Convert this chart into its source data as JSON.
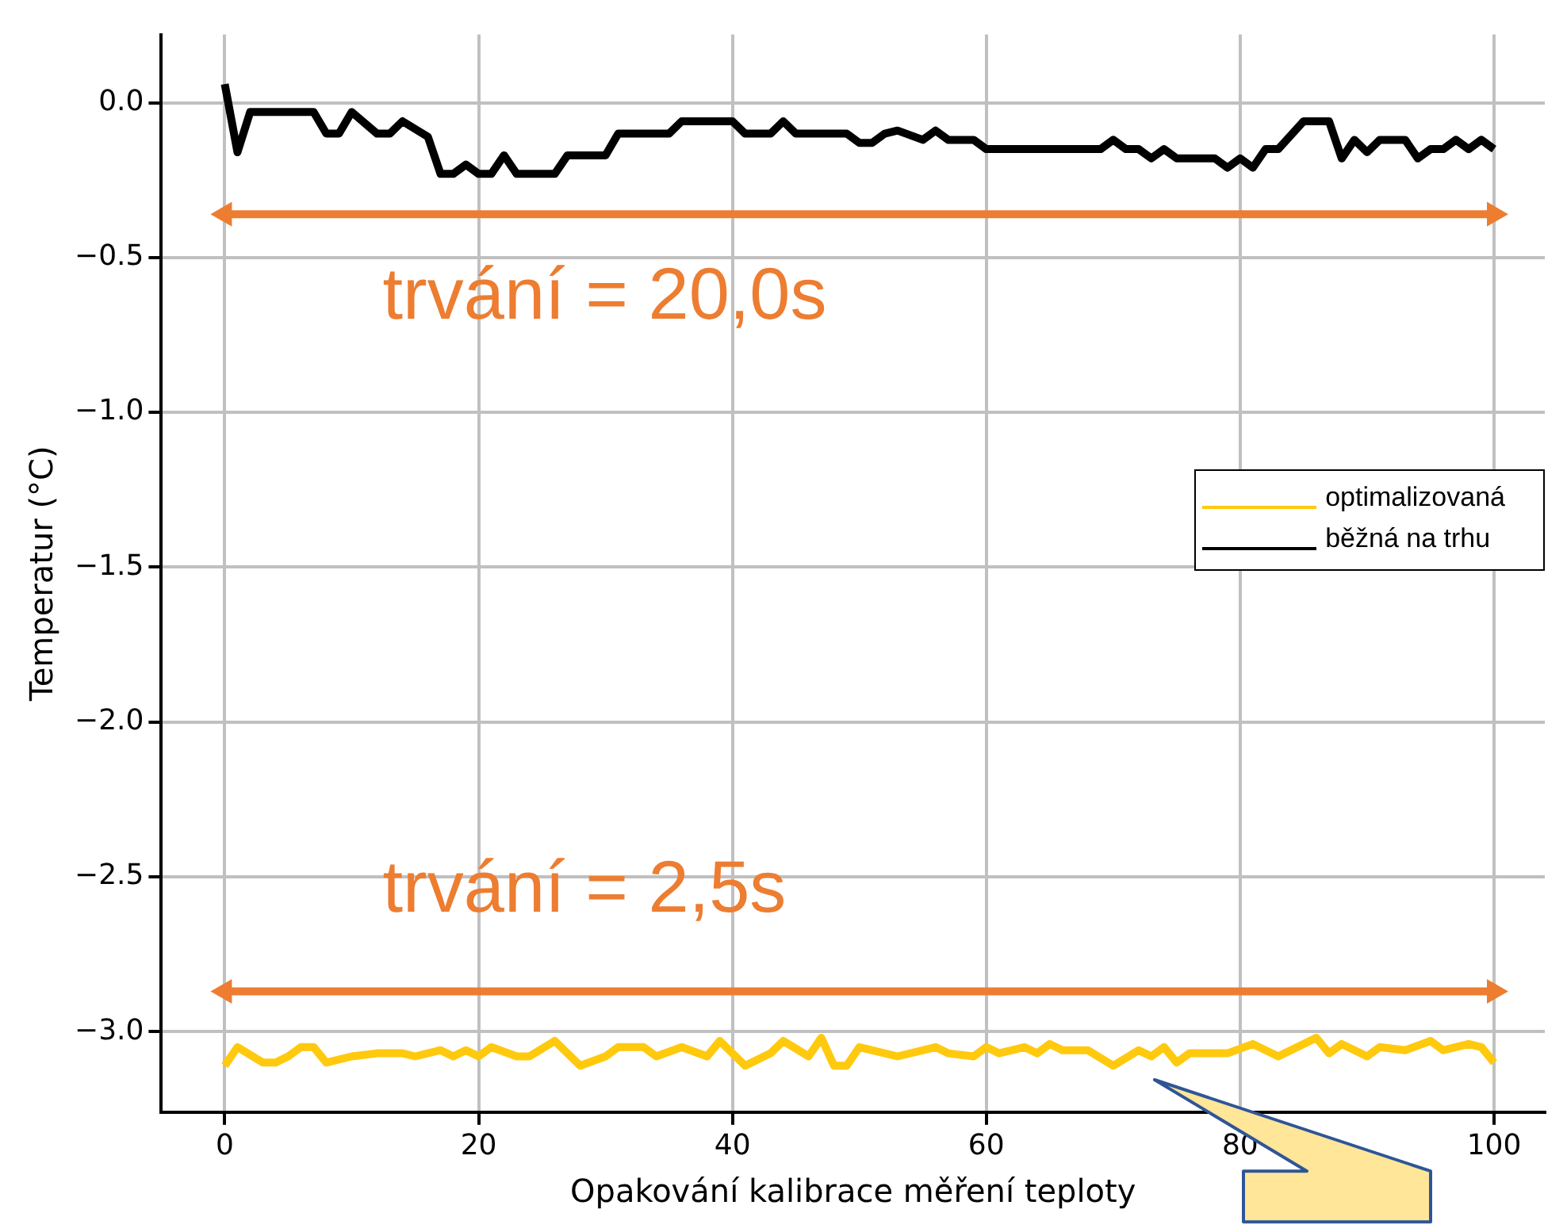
{
  "chart_data": {
    "type": "line",
    "xlabel": "Opakování kalibrace měření teploty",
    "ylabel": "Temperatur (°C)",
    "xlim": [
      -5,
      104
    ],
    "xticks": [
      0,
      20,
      40,
      60,
      80,
      100
    ],
    "ylim": [
      -3.26,
      0.22
    ],
    "yticks": [
      {
        "value": -3,
        "label": "−3.0"
      },
      {
        "value": -2.5,
        "label": "−2.5"
      },
      {
        "value": -2,
        "label": "−2.0"
      },
      {
        "value": -1.5,
        "label": "−1.5"
      },
      {
        "value": -1,
        "label": "−1.0"
      },
      {
        "value": -0.5,
        "label": "−0.5"
      },
      {
        "value": 0,
        "label": "0.0"
      }
    ],
    "grid": true,
    "legend": "right",
    "marker": "none",
    "line_style": "solid",
    "annotations": [
      "trvání = 20,0s",
      "trvání = 2,5s"
    ],
    "series": [
      {
        "name": "optimalizovaná",
        "color": "#ffc90e",
        "x": [
          0,
          1,
          3,
          4,
          5,
          6,
          7,
          8,
          10,
          12,
          14,
          15,
          17,
          18,
          19,
          20,
          21,
          23,
          24,
          26,
          28,
          30,
          31,
          33,
          34,
          36,
          38,
          39,
          41,
          43,
          44,
          46,
          47,
          48,
          49,
          50,
          53,
          56,
          57,
          59,
          60,
          61,
          63,
          64,
          65,
          66,
          68,
          70,
          72,
          73,
          74,
          75,
          76,
          79,
          81,
          83,
          86,
          87,
          88,
          90,
          91,
          93,
          95,
          96,
          98,
          99,
          100
        ],
        "values": [
          -3.11,
          -3.05,
          -3.1,
          -3.1,
          -3.08,
          -3.05,
          -3.05,
          -3.1,
          -3.08,
          -3.07,
          -3.07,
          -3.08,
          -3.06,
          -3.08,
          -3.06,
          -3.08,
          -3.05,
          -3.08,
          -3.08,
          -3.03,
          -3.11,
          -3.08,
          -3.05,
          -3.05,
          -3.08,
          -3.05,
          -3.08,
          -3.03,
          -3.11,
          -3.07,
          -3.03,
          -3.08,
          -3.02,
          -3.11,
          -3.11,
          -3.05,
          -3.08,
          -3.05,
          -3.07,
          -3.08,
          -3.05,
          -3.07,
          -3.05,
          -3.07,
          -3.04,
          -3.06,
          -3.06,
          -3.11,
          -3.06,
          -3.08,
          -3.05,
          -3.1,
          -3.07,
          -3.07,
          -3.04,
          -3.08,
          -3.02,
          -3.07,
          -3.04,
          -3.08,
          -3.05,
          -3.06,
          -3.03,
          -3.06,
          -3.04,
          -3.05,
          -3.1
        ]
      },
      {
        "name": "běžná na trhu",
        "color": "#000000",
        "x": [
          0,
          1,
          2,
          7,
          8,
          9,
          10,
          12,
          13,
          14,
          16,
          17,
          18,
          19,
          20,
          21,
          22,
          23,
          26,
          27,
          30,
          31,
          35,
          36,
          40,
          41,
          43,
          44,
          45,
          49,
          50,
          51,
          52,
          53,
          55,
          56,
          57,
          59,
          60,
          69,
          70,
          71,
          72,
          73,
          74,
          75,
          78,
          79,
          80,
          81,
          82,
          83,
          85,
          87,
          88,
          89,
          90,
          91,
          93,
          94,
          95,
          96,
          97,
          98,
          99,
          100
        ],
        "values": [
          0.06,
          -0.16,
          -0.03,
          -0.03,
          -0.1,
          -0.1,
          -0.03,
          -0.1,
          -0.1,
          -0.06,
          -0.11,
          -0.23,
          -0.23,
          -0.2,
          -0.23,
          -0.23,
          -0.17,
          -0.23,
          -0.23,
          -0.17,
          -0.17,
          -0.1,
          -0.1,
          -0.06,
          -0.06,
          -0.1,
          -0.1,
          -0.06,
          -0.1,
          -0.1,
          -0.13,
          -0.13,
          -0.1,
          -0.09,
          -0.12,
          -0.09,
          -0.12,
          -0.12,
          -0.15,
          -0.15,
          -0.12,
          -0.15,
          -0.15,
          -0.18,
          -0.15,
          -0.18,
          -0.18,
          -0.21,
          -0.18,
          -0.21,
          -0.15,
          -0.15,
          -0.06,
          -0.06,
          -0.18,
          -0.12,
          -0.16,
          -0.12,
          -0.12,
          -0.18,
          -0.15,
          -0.15,
          -0.12,
          -0.15,
          -0.12,
          -0.15
        ]
      },
      {
        "color": "#ed7d31",
        "marker": "triangle",
        "x": [
          0,
          100
        ],
        "values": [
          -0.36,
          -0.36
        ]
      },
      {
        "color": "#ed7d31",
        "marker": "triangle",
        "x": [
          0,
          100
        ],
        "values": [
          -2.87,
          -2.87
        ]
      }
    ]
  }
}
